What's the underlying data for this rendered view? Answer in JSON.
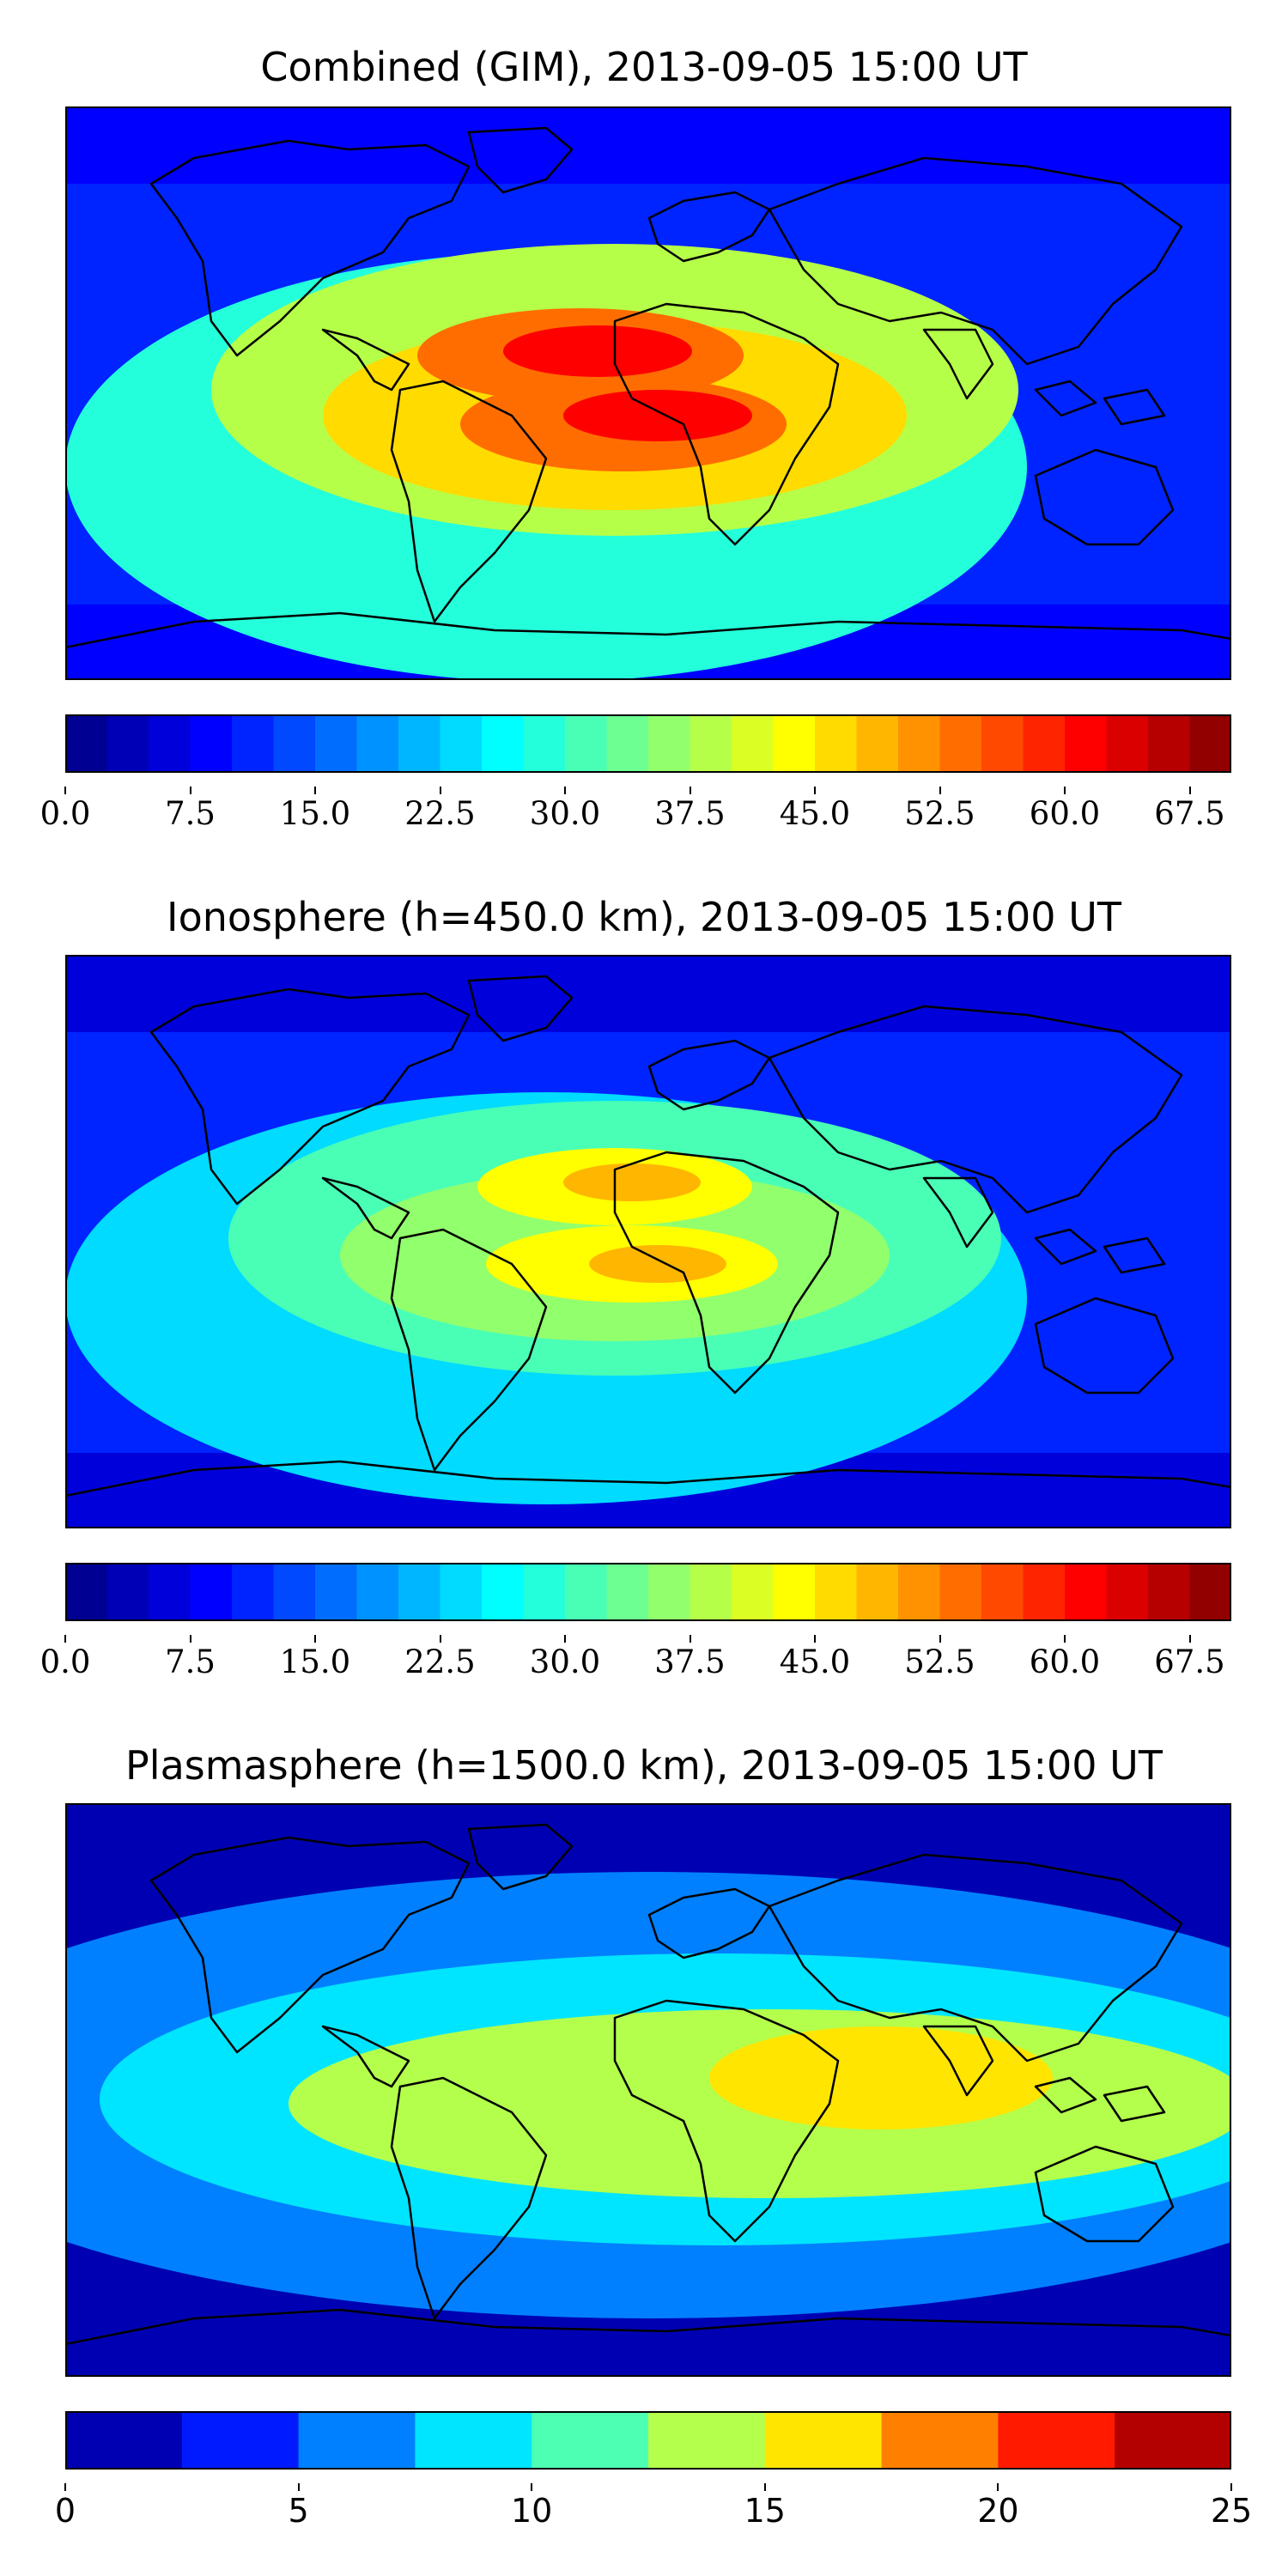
{
  "panels": [
    {
      "title": "Combined (GIM), 2013-09-05 15:00 UT",
      "chart_data": {
        "type": "heatmap",
        "title": "Combined (GIM), 2013-09-05 15:00 UT",
        "field": "global map of TEC over world coastlines",
        "colormap": "jet",
        "colorbar_range": [
          0,
          70
        ],
        "colorbar_step": 2.5,
        "colorbar_ticks": [
          "0.0",
          "7.5",
          "15.0",
          "22.5",
          "30.0",
          "37.5",
          "45.0",
          "52.5",
          "60.0",
          "67.5"
        ],
        "colorbar_tick_values": [
          0,
          7.5,
          15,
          22.5,
          30,
          37.5,
          45,
          52.5,
          60,
          67.5
        ],
        "peak_value_approx": 60,
        "background_value_approx": 12
      }
    },
    {
      "title": "Ionosphere  (h=450.0 km), 2013-09-05 15:00 UT",
      "chart_data": {
        "type": "heatmap",
        "title": "Ionosphere  (h=450.0 km), 2013-09-05 15:00 UT",
        "field": "global map of TEC over world coastlines",
        "colormap": "jet",
        "colorbar_range": [
          0,
          70
        ],
        "colorbar_step": 2.5,
        "colorbar_ticks": [
          "0.0",
          "7.5",
          "15.0",
          "22.5",
          "30.0",
          "37.5",
          "45.0",
          "52.5",
          "60.0",
          "67.5"
        ],
        "colorbar_tick_values": [
          0,
          7.5,
          15,
          22.5,
          30,
          37.5,
          45,
          52.5,
          60,
          67.5
        ],
        "peak_value_approx": 48,
        "background_value_approx": 10
      }
    },
    {
      "title": "Plasmasphere (h=1500.0 km), 2013-09-05 15:00 UT",
      "chart_data": {
        "type": "heatmap",
        "title": "Plasmasphere (h=1500.0 km), 2013-09-05 15:00 UT",
        "field": "global map of TEC over world coastlines",
        "colormap": "jet",
        "colorbar_range": [
          0,
          25
        ],
        "colorbar_step": 2.5,
        "colorbar_ticks": [
          "0",
          "5",
          "10",
          "15",
          "20",
          "25"
        ],
        "colorbar_tick_values": [
          0,
          5,
          10,
          15,
          20,
          25
        ],
        "peak_value_approx": 16,
        "background_value_approx": 2
      }
    }
  ],
  "colors": {
    "map_border": "#000000",
    "coastline": "#000000",
    "jet_low": "#00007f",
    "jet_high": "#7f0000"
  }
}
